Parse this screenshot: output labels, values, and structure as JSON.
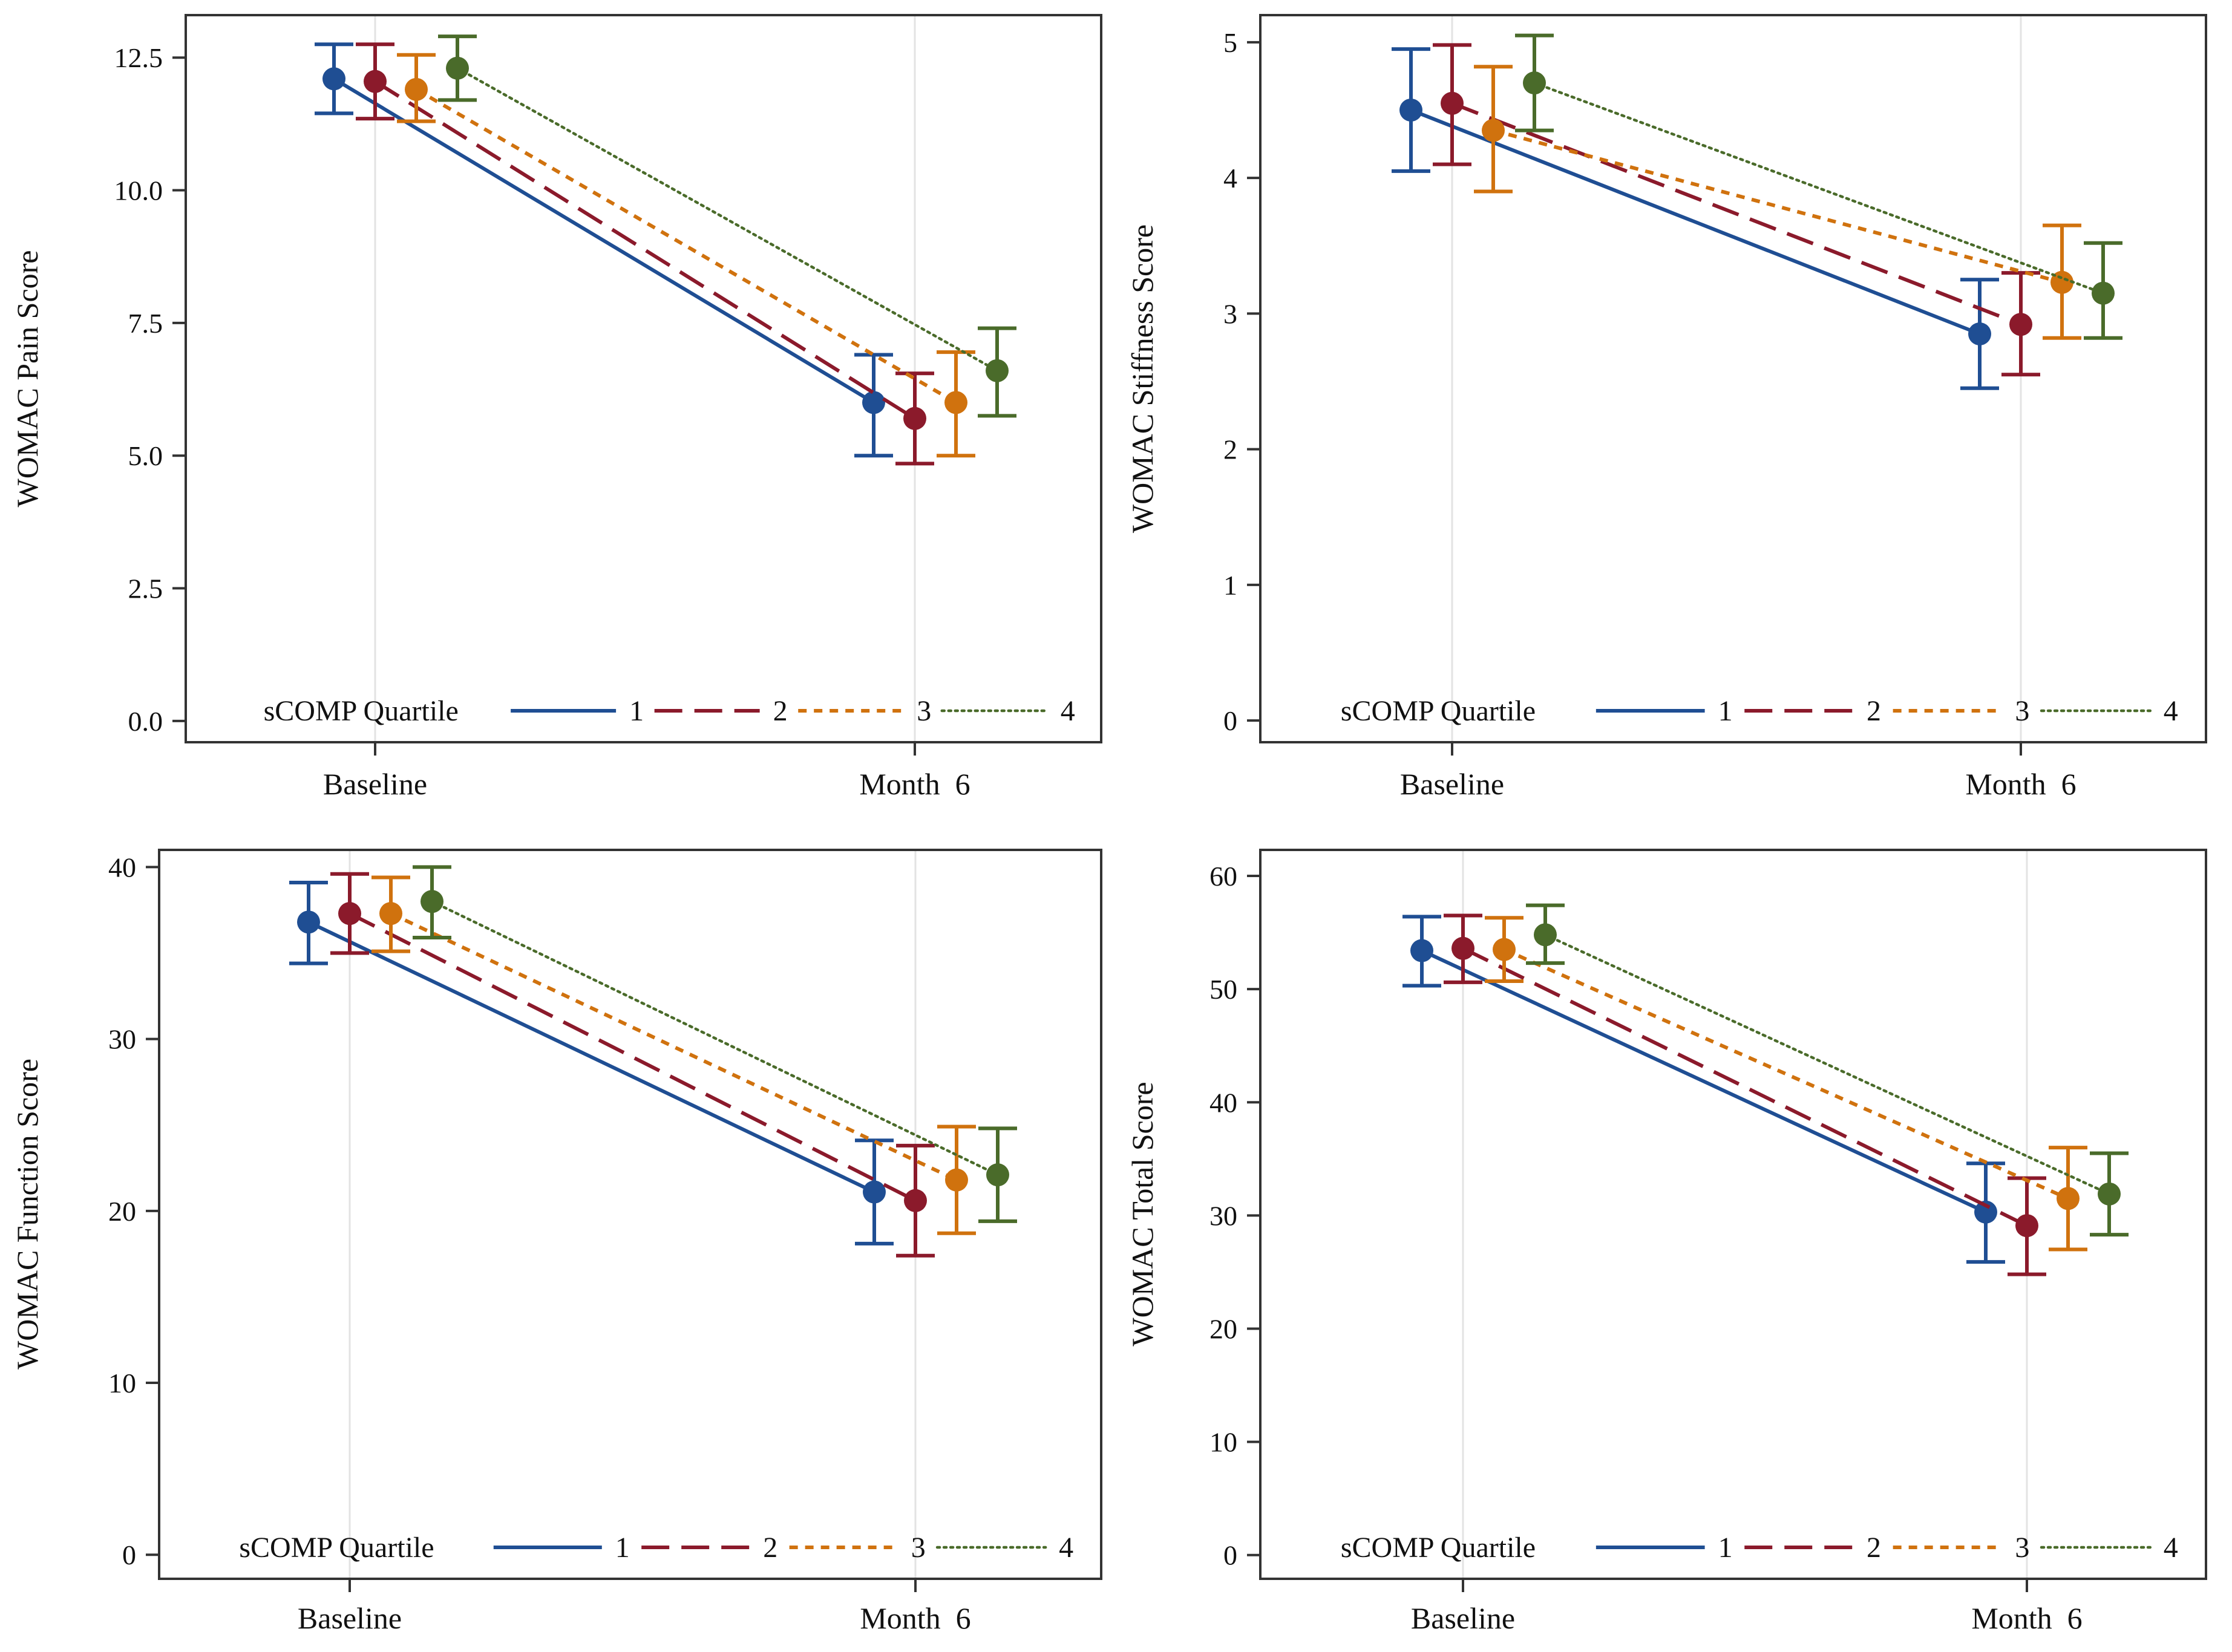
{
  "figure": {
    "panel_count": 4
  },
  "series_styles": [
    {
      "name": "1",
      "color": "#1f4e93",
      "dash": "solid"
    },
    {
      "name": "2",
      "color": "#8b1a2b",
      "dash": "long-dash"
    },
    {
      "name": "3",
      "color": "#d0720e",
      "dash": "short-dash"
    },
    {
      "name": "4",
      "color": "#4a6b2a",
      "dash": "dotted"
    }
  ],
  "chart_data": [
    {
      "type": "line",
      "title": "",
      "xlabel": "",
      "ylabel": "WOMAC Pain Score",
      "categories": [
        "Baseline",
        "Month  6"
      ],
      "yticks": [
        "0.0",
        "2.5",
        "5.0",
        "7.5",
        "10.0",
        "12.5"
      ],
      "ylim": [
        -0.4,
        13.3
      ],
      "grid": "vertical",
      "legend_position": "bottom",
      "legend_title": "sCOMP Quartile",
      "series": [
        {
          "name": "1",
          "values": [
            12.1,
            6.0
          ],
          "lower": [
            11.45,
            5.0
          ],
          "upper": [
            12.75,
            6.9
          ]
        },
        {
          "name": "2",
          "values": [
            12.05,
            5.7
          ],
          "lower": [
            11.35,
            4.85
          ],
          "upper": [
            12.75,
            6.55
          ]
        },
        {
          "name": "3",
          "values": [
            11.9,
            6.0
          ],
          "lower": [
            11.3,
            5.0
          ],
          "upper": [
            12.55,
            6.95
          ]
        },
        {
          "name": "4",
          "values": [
            12.3,
            6.6
          ],
          "lower": [
            11.7,
            5.75
          ],
          "upper": [
            12.9,
            7.4
          ]
        }
      ]
    },
    {
      "type": "line",
      "title": "",
      "xlabel": "",
      "ylabel": "WOMAC Stiffness Score",
      "categories": [
        "Baseline",
        "Month  6"
      ],
      "yticks": [
        "0",
        "1",
        "2",
        "3",
        "4",
        "5"
      ],
      "ylim": [
        -0.16,
        5.2
      ],
      "grid": "vertical",
      "legend_position": "bottom",
      "legend_title": "sCOMP Quartile",
      "series": [
        {
          "name": "1",
          "values": [
            4.5,
            2.85
          ],
          "lower": [
            4.05,
            2.45
          ],
          "upper": [
            4.95,
            3.25
          ]
        },
        {
          "name": "2",
          "values": [
            4.55,
            2.92
          ],
          "lower": [
            4.1,
            2.55
          ],
          "upper": [
            4.98,
            3.3
          ]
        },
        {
          "name": "3",
          "values": [
            4.35,
            3.23
          ],
          "lower": [
            3.9,
            2.82
          ],
          "upper": [
            4.82,
            3.65
          ]
        },
        {
          "name": "4",
          "values": [
            4.7,
            3.15
          ],
          "lower": [
            4.35,
            2.82
          ],
          "upper": [
            5.05,
            3.52
          ]
        }
      ]
    },
    {
      "type": "line",
      "title": "",
      "xlabel": "",
      "ylabel": "WOMAC Function Score",
      "categories": [
        "Baseline",
        "Month  6"
      ],
      "yticks": [
        "0",
        "10",
        "20",
        "30",
        "40"
      ],
      "ylim": [
        -1.4,
        41.0
      ],
      "grid": "vertical",
      "legend_position": "bottom",
      "legend_title": "sCOMP Quartile",
      "series": [
        {
          "name": "1",
          "values": [
            36.8,
            21.1
          ],
          "lower": [
            34.4,
            18.1
          ],
          "upper": [
            39.1,
            24.1
          ]
        },
        {
          "name": "2",
          "values": [
            37.3,
            20.6
          ],
          "lower": [
            35.0,
            17.4
          ],
          "upper": [
            39.6,
            23.8
          ]
        },
        {
          "name": "3",
          "values": [
            37.3,
            21.8
          ],
          "lower": [
            35.1,
            18.7
          ],
          "upper": [
            39.4,
            24.9
          ]
        },
        {
          "name": "4",
          "values": [
            38.0,
            22.1
          ],
          "lower": [
            35.9,
            19.4
          ],
          "upper": [
            40.0,
            24.8
          ]
        }
      ]
    },
    {
      "type": "line",
      "title": "",
      "xlabel": "",
      "ylabel": "WOMAC Total Score",
      "categories": [
        "Baseline",
        "Month  6"
      ],
      "yticks": [
        "0",
        "10",
        "20",
        "30",
        "40",
        "50",
        "60"
      ],
      "ylim": [
        -2.1,
        62.3
      ],
      "grid": "vertical",
      "legend_position": "bottom",
      "legend_title": "sCOMP Quartile",
      "series": [
        {
          "name": "1",
          "values": [
            53.4,
            30.3
          ],
          "lower": [
            50.3,
            25.9
          ],
          "upper": [
            56.4,
            34.6
          ]
        },
        {
          "name": "2",
          "values": [
            53.6,
            29.1
          ],
          "lower": [
            50.6,
            24.8
          ],
          "upper": [
            56.5,
            33.3
          ]
        },
        {
          "name": "3",
          "values": [
            53.5,
            31.5
          ],
          "lower": [
            50.7,
            27.0
          ],
          "upper": [
            56.3,
            36.0
          ]
        },
        {
          "name": "4",
          "values": [
            54.8,
            31.9
          ],
          "lower": [
            52.3,
            28.3
          ],
          "upper": [
            57.4,
            35.5
          ]
        }
      ]
    }
  ]
}
